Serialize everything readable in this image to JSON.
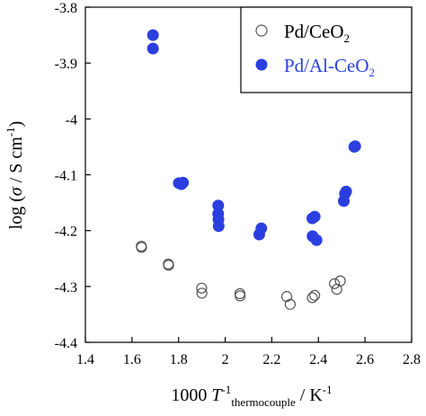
{
  "chart_data": {
    "type": "scatter",
    "xlabel": {
      "prefix": "1000 ",
      "symbol": "T",
      "sup": "-1",
      "sub": "thermocouple",
      "suffix": " / K",
      "suffix_sup": "-1"
    },
    "ylabel": {
      "prefix": "log (",
      "symbol": "σ",
      "middle": " / S cm",
      "sup": "-1",
      "suffix": ")"
    },
    "xlim": [
      1.4,
      2.8
    ],
    "ylim": [
      -4.4,
      -3.8
    ],
    "x_ticks": [
      1.4,
      1.6,
      1.8,
      2.0,
      2.2,
      2.4,
      2.6,
      2.8
    ],
    "x_tick_labels": [
      "1.4",
      "1.6",
      "1.8",
      "2",
      "2.2",
      "2.4",
      "2.6",
      "2.8"
    ],
    "y_ticks": [
      -3.8,
      -3.9,
      -4.0,
      -4.1,
      -4.2,
      -4.3,
      -4.4
    ],
    "y_tick_labels": [
      "-3.8",
      "-3.9",
      "-4",
      "-4.1",
      "-4.2",
      "-4.3",
      "-4.4"
    ],
    "grid": false,
    "legend_position": "top-right",
    "series": [
      {
        "name": "Pd/CeO",
        "name_sub": "2",
        "color": "#555555",
        "marker": "open-circle",
        "points": [
          [
            1.64,
            -4.228
          ],
          [
            1.641,
            -4.23
          ],
          [
            1.756,
            -4.26
          ],
          [
            1.757,
            -4.262
          ],
          [
            1.899,
            -4.303
          ],
          [
            1.9,
            -4.312
          ],
          [
            2.063,
            -4.313
          ],
          [
            2.064,
            -4.317
          ],
          [
            2.264,
            -4.318
          ],
          [
            2.279,
            -4.332
          ],
          [
            2.374,
            -4.32
          ],
          [
            2.384,
            -4.316
          ],
          [
            2.469,
            -4.295
          ],
          [
            2.479,
            -4.305
          ],
          [
            2.494,
            -4.29
          ]
        ]
      },
      {
        "name": "Pd/Al-CeO",
        "name_sub": "2",
        "color": "#2b3fe0",
        "marker": "filled-circle",
        "points": [
          [
            1.69,
            -3.85
          ],
          [
            1.69,
            -3.874
          ],
          [
            1.801,
            -4.115
          ],
          [
            1.812,
            -4.117
          ],
          [
            1.819,
            -4.114
          ],
          [
            1.97,
            -4.155
          ],
          [
            1.97,
            -4.17
          ],
          [
            1.971,
            -4.18
          ],
          [
            1.972,
            -4.192
          ],
          [
            2.146,
            -4.207
          ],
          [
            2.155,
            -4.196
          ],
          [
            2.374,
            -4.178
          ],
          [
            2.384,
            -4.175
          ],
          [
            2.375,
            -4.21
          ],
          [
            2.392,
            -4.217
          ],
          [
            2.509,
            -4.147
          ],
          [
            2.514,
            -4.134
          ],
          [
            2.519,
            -4.13
          ],
          [
            2.554,
            -4.05
          ],
          [
            2.558,
            -4.049
          ]
        ]
      }
    ]
  }
}
